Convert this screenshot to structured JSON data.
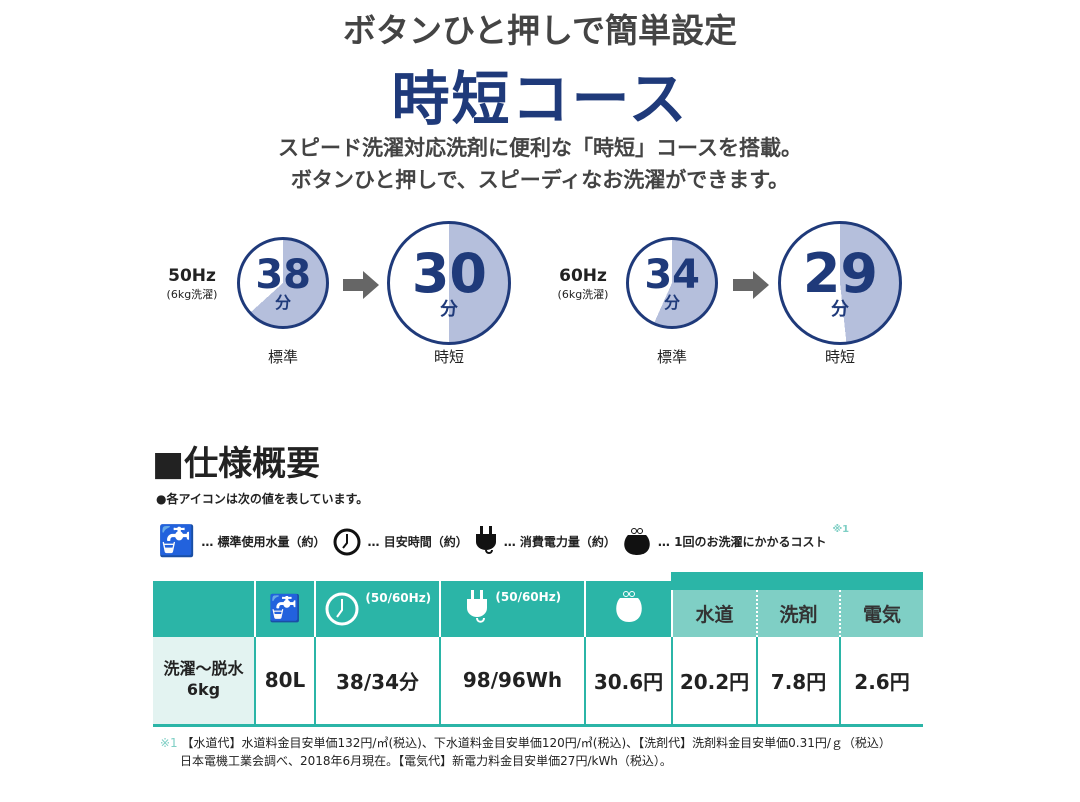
{
  "header": {
    "tagline": "ボタンひと押しで簡単設定",
    "title": "時短コース",
    "desc_line1": "スピード洗濯対応洗剤に便利な「時短」コースを搭載。",
    "desc_line2": "ボタンひと押しで、スピーディなお洗濯ができます。"
  },
  "comparisons": [
    {
      "freq": "50Hz",
      "load": "(6kg洗濯)",
      "standard": {
        "minutes": "38",
        "unit": "分",
        "label": "標準",
        "fraction": 0.633
      },
      "quick": {
        "minutes": "30",
        "unit": "分",
        "label": "時短",
        "fraction": 0.5
      }
    },
    {
      "freq": "60Hz",
      "load": "(6kg洗濯)",
      "standard": {
        "minutes": "34",
        "unit": "分",
        "label": "標準",
        "fraction": 0.567
      },
      "quick": {
        "minutes": "29",
        "unit": "分",
        "label": "時短",
        "fraction": 0.483
      }
    }
  ],
  "spec": {
    "title": "■仕様概要",
    "note": "●各アイコンは次の値を表しています。",
    "legend": [
      {
        "icon": "faucet-icon",
        "text": "… 標準使用水量（約）"
      },
      {
        "icon": "clock-icon",
        "text": "… 目安時間（約）"
      },
      {
        "icon": "plug-icon",
        "text": "… 消費電力量（約）"
      },
      {
        "icon": "purse-icon",
        "text": "… 1回のお洗濯にかかるコスト"
      }
    ],
    "legend_mark": "※1",
    "hz_label": "(50/60Hz)",
    "sub_headers": [
      "水道",
      "洗剤",
      "電気"
    ],
    "row": {
      "label_line1": "洗濯～脱水",
      "label_line2": "6kg",
      "water": "80L",
      "time": "38/34分",
      "power": "98/96Wh",
      "cost": "30.6円",
      "water_cost": "20.2円",
      "detergent_cost": "7.8円",
      "electric_cost": "2.6円"
    }
  },
  "footnote": {
    "mark": "※1",
    "line1": "【水道代】水道料金目安単価132円/㎥(税込)、下水道料金目安単価120円/㎥(税込)、【洗剤代】洗剤料金目安単価0.31円/ｇ（税込）",
    "line2": "日本電機工業会調べ、2018年6月現在。【電気代】新電力料金目安単価27円/kWh（税込）。"
  },
  "colors": {
    "navy": "#1f3a7a",
    "teal": "#2bb5a7",
    "light_teal": "#7fcfc5",
    "fill": "#b5bfdc"
  }
}
